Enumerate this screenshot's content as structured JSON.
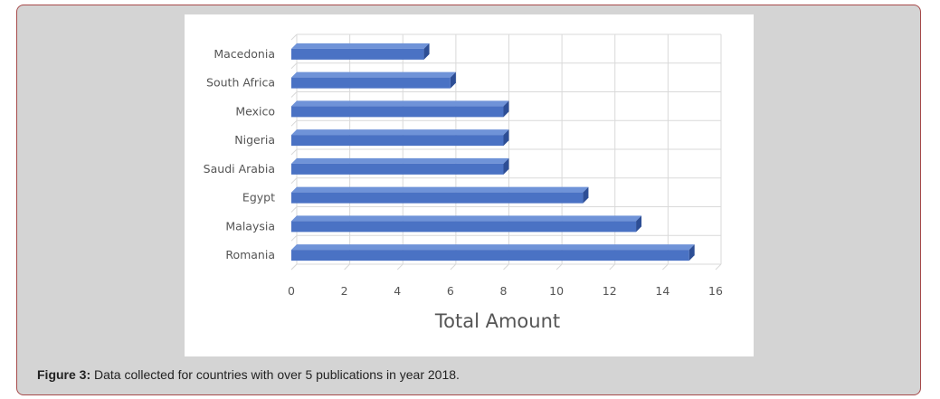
{
  "caption": {
    "label": "Figure 3:",
    "text": " Data collected for countries with over 5 publications in year 2018."
  },
  "colors": {
    "bar_face": "#4a72c4",
    "bar_top": "#6f93d8",
    "bar_side": "#2d4e95",
    "grid": "#d9d9d9"
  },
  "chart_data": {
    "type": "bar",
    "orientation": "horizontal",
    "style": "3d",
    "categories": [
      "Macedonia",
      "South Africa",
      "Mexico",
      "Nigeria",
      "Saudi Arabia",
      "Egypt",
      "Malaysia",
      "Romania"
    ],
    "values": [
      5,
      6,
      8,
      8,
      8,
      11,
      13,
      15
    ],
    "xlabel": "Total Amount",
    "ylabel": "",
    "xlim": [
      0,
      16
    ],
    "xticks": [
      0,
      2,
      4,
      6,
      8,
      10,
      12,
      14,
      16
    ],
    "grid": true,
    "legend": "none"
  }
}
